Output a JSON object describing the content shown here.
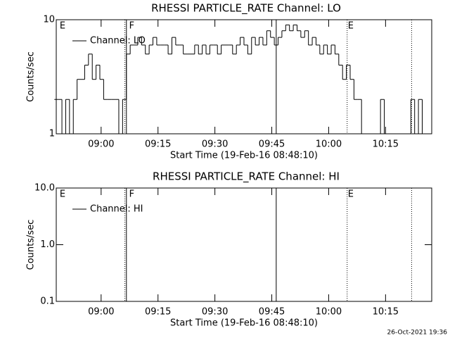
{
  "chart_data": [
    {
      "type": "line",
      "title": "RHESSI PARTICLE_RATE Channel: LO",
      "xlabel": "Start Time (19-Feb-16 08:48:10)",
      "ylabel": "Counts/sec",
      "log_y": true,
      "ylim": [
        1,
        10
      ],
      "yticks": [
        1,
        10
      ],
      "xlim": [
        0,
        99
      ],
      "xticks": [
        {
          "value": 11.83,
          "label": "09:00"
        },
        {
          "value": 26.83,
          "label": "09:15"
        },
        {
          "value": 41.83,
          "label": "09:30"
        },
        {
          "value": 56.83,
          "label": "09:45"
        },
        {
          "value": 71.83,
          "label": "10:00"
        },
        {
          "value": 86.83,
          "label": "10:15"
        }
      ],
      "vlines": [
        {
          "x": 18.1,
          "style": "dotted"
        },
        {
          "x": 18.5,
          "style": "solid"
        },
        {
          "x": 58.0,
          "style": "solid"
        },
        {
          "x": 76.7,
          "style": "dotted"
        },
        {
          "x": 93.7,
          "style": "dotted"
        }
      ],
      "annotations": [
        {
          "label": "E",
          "x": 0.9
        },
        {
          "label": "F",
          "x": 19.2
        },
        {
          "label": "E",
          "x": 76.9
        }
      ],
      "x": [
        0,
        1,
        2,
        3,
        4,
        5,
        6,
        7,
        8,
        9,
        10,
        11,
        12,
        13,
        14,
        15,
        16,
        17,
        18,
        19,
        20,
        21,
        22,
        23,
        24,
        25,
        26,
        27,
        28,
        29,
        30,
        31,
        32,
        33,
        34,
        35,
        36,
        37,
        38,
        39,
        40,
        41,
        42,
        43,
        44,
        45,
        46,
        47,
        48,
        49,
        50,
        51,
        52,
        53,
        54,
        55,
        56,
        57,
        58,
        59,
        60,
        61,
        62,
        63,
        64,
        65,
        66,
        67,
        68,
        69,
        70,
        71,
        72,
        73,
        74,
        75,
        76,
        77,
        78,
        79,
        80,
        81,
        82,
        83,
        84,
        85,
        86,
        87,
        88,
        89,
        90,
        91,
        92,
        93,
        94,
        95,
        96,
        97,
        98
      ],
      "series": [
        {
          "name": "Channel: LO",
          "color": "#000000",
          "values": [
            2,
            2,
            null,
            2,
            null,
            2,
            3,
            3,
            4,
            5,
            3,
            4,
            3,
            2,
            2,
            2,
            2,
            1,
            2,
            5,
            6,
            6,
            7,
            6,
            5,
            6,
            7,
            6,
            6,
            6,
            5,
            7,
            6,
            6,
            5,
            5,
            5,
            6,
            5,
            6,
            5,
            6,
            6,
            5,
            6,
            6,
            6,
            5,
            6,
            7,
            6,
            5,
            7,
            6,
            7,
            6,
            8,
            7,
            6,
            7,
            8,
            9,
            8,
            9,
            8,
            7,
            8,
            6,
            7,
            6,
            5,
            6,
            5,
            6,
            5,
            4,
            3,
            4,
            3,
            2,
            2,
            1,
            null,
            null,
            null,
            null,
            2,
            null,
            null,
            null,
            null,
            null,
            null,
            null,
            2,
            null,
            2,
            null,
            null
          ]
        }
      ],
      "legend": "upper left"
    },
    {
      "type": "line",
      "title": "RHESSI PARTICLE_RATE Channel: HI",
      "xlabel": "Start Time (19-Feb-16 08:48:10)",
      "ylabel": "Counts/sec",
      "log_y": true,
      "ylim": [
        0.1,
        10
      ],
      "yticks": [
        0.1,
        {
          "value": 1,
          "label": "1.0"
        },
        {
          "value": 10,
          "label": "10.0"
        }
      ],
      "xlim": [
        0,
        99
      ],
      "xticks": [
        {
          "value": 11.83,
          "label": "09:00"
        },
        {
          "value": 26.83,
          "label": "09:15"
        },
        {
          "value": 41.83,
          "label": "09:30"
        },
        {
          "value": 56.83,
          "label": "09:45"
        },
        {
          "value": 71.83,
          "label": "10:00"
        },
        {
          "value": 86.83,
          "label": "10:15"
        }
      ],
      "vlines": [
        {
          "x": 18.1,
          "style": "dotted"
        },
        {
          "x": 18.5,
          "style": "solid"
        },
        {
          "x": 58.0,
          "style": "solid"
        },
        {
          "x": 76.7,
          "style": "dotted"
        },
        {
          "x": 93.7,
          "style": "dotted"
        }
      ],
      "annotations": [
        {
          "label": "E",
          "x": 0.9
        },
        {
          "label": "F",
          "x": 19.2
        },
        {
          "label": "E",
          "x": 76.9
        }
      ],
      "x": [],
      "series": [
        {
          "name": "Channel: HI",
          "color": "#000000",
          "values": []
        }
      ],
      "legend": "upper left"
    }
  ],
  "footer": "26-Oct-2021 19:36"
}
